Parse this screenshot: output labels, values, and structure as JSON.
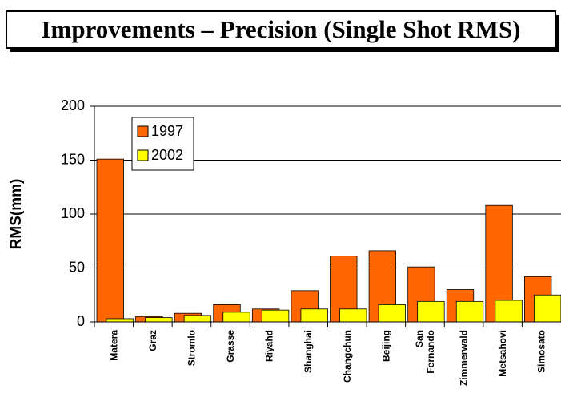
{
  "chart_data": {
    "type": "bar",
    "title": "Improvements – Precision (Single Shot RMS)",
    "y_label": "RMS(mm)",
    "categories": [
      "Matera",
      "Graz",
      "Stromlo",
      "Grasse",
      "Riyahd",
      "Shanghai",
      "Changchun",
      "Beijing",
      "San Fernando",
      "Zimmerwald",
      "Metsahovi",
      "Simosato"
    ],
    "series": [
      {
        "name": "1997",
        "color": "#ff6600",
        "values": [
          151,
          5,
          8,
          16,
          12,
          29,
          61,
          66,
          51,
          30,
          108,
          42
        ]
      },
      {
        "name": "2002",
        "color": "#ffff00",
        "values": [
          3,
          4,
          6,
          9,
          11,
          12,
          12,
          16,
          19,
          19,
          20,
          25
        ]
      }
    ],
    "ylim": [
      0,
      200
    ],
    "yticks": [
      0,
      50,
      100,
      150,
      200
    ],
    "grid": true,
    "legend": "top-left"
  }
}
